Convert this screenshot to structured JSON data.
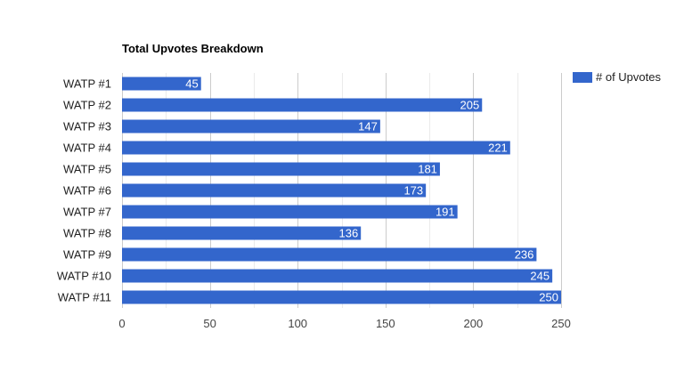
{
  "chart_data": {
    "type": "bar",
    "orientation": "horizontal",
    "title": "Total Upvotes Breakdown",
    "categories": [
      "WATP #1",
      "WATP #2",
      "WATP #3",
      "WATP #4",
      "WATP #5",
      "WATP #6",
      "WATP #7",
      "WATP #8",
      "WATP #9",
      "WATP #10",
      "WATP #11"
    ],
    "series": [
      {
        "name": "# of Upvotes",
        "values": [
          45,
          205,
          147,
          221,
          181,
          173,
          191,
          136,
          236,
          245,
          250
        ],
        "color": "#3366cc"
      }
    ],
    "xlim": [
      0,
      250
    ],
    "xticks": [
      0,
      50,
      100,
      150,
      200,
      250
    ],
    "grid": true,
    "legend": "right"
  }
}
